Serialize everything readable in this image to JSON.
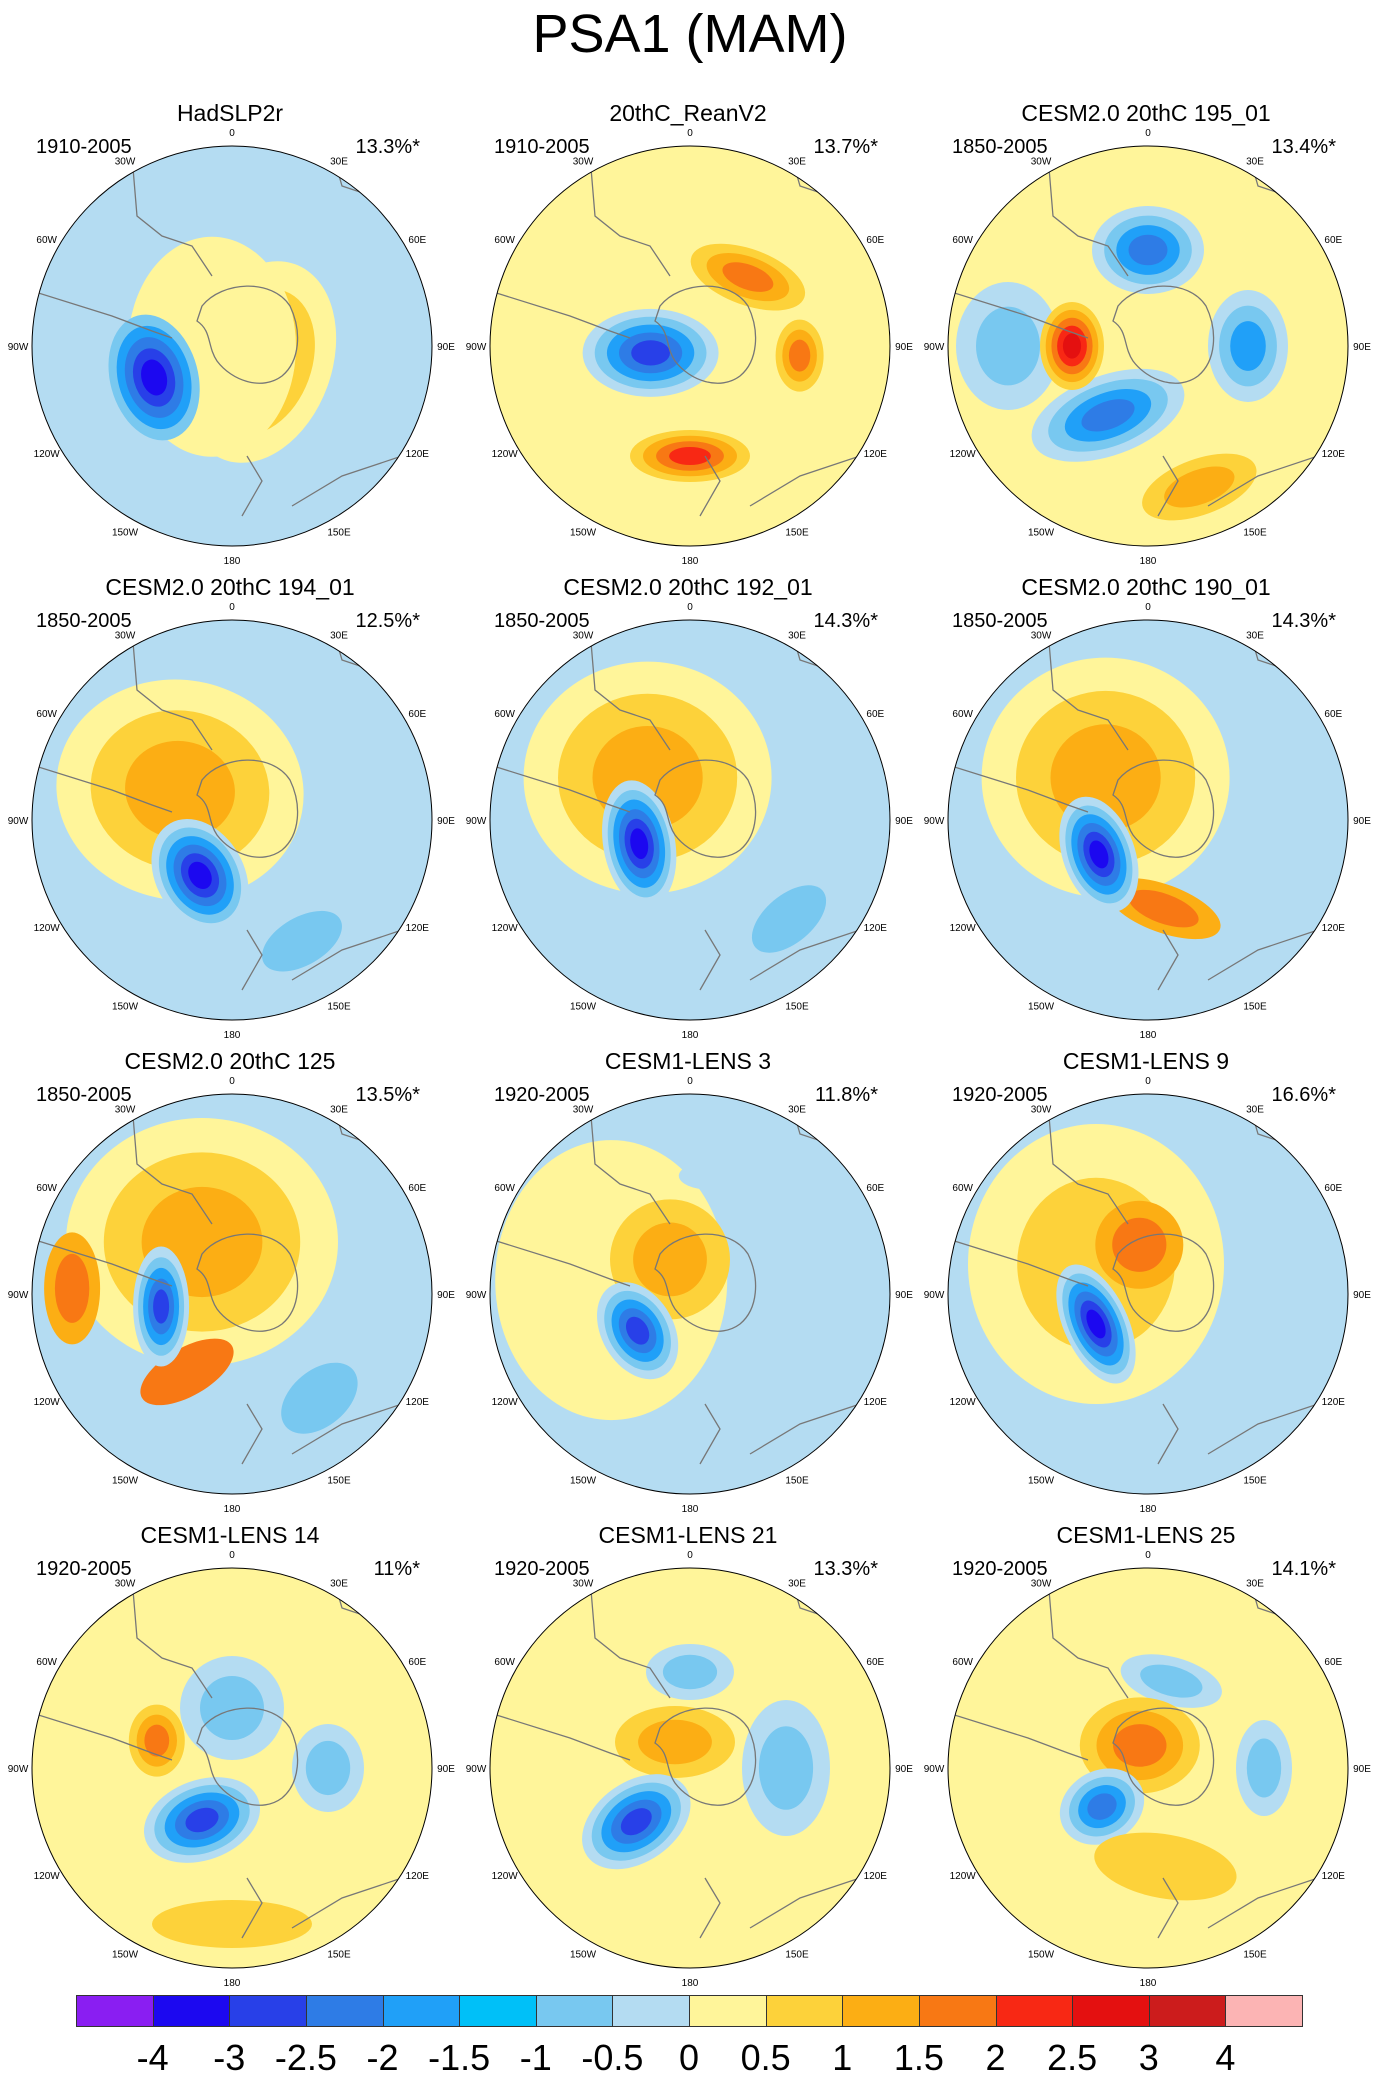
{
  "title": "PSA1 (MAM)",
  "longitude_labels": [
    "0",
    "30E",
    "60E",
    "90E",
    "120E",
    "150E",
    "180",
    "150W",
    "120W",
    "90W",
    "60W",
    "30W"
  ],
  "panels": [
    {
      "title": "HadSLP2r",
      "period": "1910-2005",
      "percent": "13.3%*",
      "background": "#b4dcf2",
      "blobs": [
        {
          "dir": 120,
          "r": 0.16,
          "rx": 0.36,
          "ry": 0.52,
          "rot": 20,
          "levels": [
            "#fff59a",
            "#fdd23a",
            "#fcae14"
          ]
        },
        {
          "dir": -92,
          "r": 0.1,
          "rx": 0.42,
          "ry": 0.55,
          "rot": 0,
          "levels": [
            "#fff59a"
          ]
        },
        {
          "dir": -112,
          "r": 0.42,
          "rx": 0.22,
          "ry": 0.32,
          "rot": -15,
          "levels": [
            "#78c8f0",
            "#20a0f8",
            "#2e7ce6",
            "#2840e8",
            "#1c08f0"
          ]
        }
      ]
    },
    {
      "title": "20thC_ReanV2",
      "period": "1910-2005",
      "percent": "13.7%*",
      "background": "#fff59a",
      "blobs": [
        {
          "dir": 40,
          "r": 0.45,
          "rx": 0.3,
          "ry": 0.14,
          "rot": 20,
          "levels": [
            "#fdd23a",
            "#fcae14",
            "#f87814"
          ]
        },
        {
          "dir": 180,
          "r": 0.55,
          "rx": 0.3,
          "ry": 0.13,
          "rot": 0,
          "levels": [
            "#fdd23a",
            "#fcae14",
            "#f87814",
            "#f82814"
          ]
        },
        {
          "dir": 95,
          "r": 0.55,
          "rx": 0.12,
          "ry": 0.18,
          "rot": 0,
          "levels": [
            "#fdd23a",
            "#fcae14",
            "#f87814"
          ]
        },
        {
          "dir": -100,
          "r": 0.2,
          "rx": 0.34,
          "ry": 0.22,
          "rot": 0,
          "levels": [
            "#b4dcf2",
            "#78c8f0",
            "#20a0f8",
            "#2e7ce6",
            "#2840e8"
          ]
        }
      ]
    },
    {
      "title": "CESM2.0 20thC 195_01",
      "period": "1850-2005",
      "percent": "13.4%*",
      "background": "#fff59a",
      "blobs": [
        {
          "dir": 0,
          "r": 0.48,
          "rx": 0.28,
          "ry": 0.22,
          "rot": 0,
          "levels": [
            "#b4dcf2",
            "#78c8f0",
            "#20a0f8",
            "#2e7ce6"
          ]
        },
        {
          "dir": 90,
          "r": 0.5,
          "rx": 0.2,
          "ry": 0.28,
          "rot": 0,
          "levels": [
            "#b4dcf2",
            "#78c8f0",
            "#20a0f8"
          ]
        },
        {
          "dir": -150,
          "r": 0.4,
          "rx": 0.4,
          "ry": 0.2,
          "rot": -20,
          "levels": [
            "#b4dcf2",
            "#78c8f0",
            "#20a0f8",
            "#2e7ce6"
          ]
        },
        {
          "dir": -90,
          "r": 0.7,
          "rx": 0.26,
          "ry": 0.32,
          "rot": 0,
          "levels": [
            "#b4dcf2",
            "#78c8f0"
          ]
        },
        {
          "dir": -90,
          "r": 0.38,
          "rx": 0.16,
          "ry": 0.22,
          "rot": 0,
          "levels": [
            "#fdd23a",
            "#fcae14",
            "#f87814",
            "#f82814",
            "#e41010"
          ]
        },
        {
          "dir": 160,
          "r": 0.75,
          "rx": 0.3,
          "ry": 0.14,
          "rot": -20,
          "levels": [
            "#fdd23a",
            "#fcae14"
          ]
        }
      ]
    },
    {
      "title": "CESM2.0 20thC 194_01",
      "period": "1850-2005",
      "percent": "12.5%*",
      "background": "#b4dcf2",
      "blobs": [
        {
          "dir": -60,
          "r": 0.3,
          "rx": 0.62,
          "ry": 0.55,
          "rot": 10,
          "levels": [
            "#fff59a",
            "#fdd23a",
            "#fcae14"
          ]
        },
        {
          "dir": -150,
          "r": 0.32,
          "rx": 0.22,
          "ry": 0.3,
          "rot": -30,
          "levels": [
            "#b4dcf2",
            "#78c8f0",
            "#20a0f8",
            "#2e7ce6",
            "#2840e8",
            "#1c08f0"
          ]
        },
        {
          "dir": 150,
          "r": 0.7,
          "rx": 0.22,
          "ry": 0.12,
          "rot": -30,
          "levels": [
            "#78c8f0"
          ]
        }
      ]
    },
    {
      "title": "CESM2.0 20thC 192_01",
      "period": "1850-2005",
      "percent": "14.3%*",
      "background": "#b4dcf2",
      "blobs": [
        {
          "dir": -45,
          "r": 0.3,
          "rx": 0.62,
          "ry": 0.58,
          "rot": 0,
          "levels": [
            "#fff59a",
            "#fdd23a",
            "#fcae14"
          ]
        },
        {
          "dir": -115,
          "r": 0.28,
          "rx": 0.18,
          "ry": 0.32,
          "rot": -10,
          "levels": [
            "#b4dcf2",
            "#78c8f0",
            "#20a0f8",
            "#2e7ce6",
            "#2840e8",
            "#1c08f0"
          ]
        },
        {
          "dir": 135,
          "r": 0.7,
          "rx": 0.22,
          "ry": 0.12,
          "rot": -40,
          "levels": [
            "#78c8f0"
          ]
        }
      ]
    },
    {
      "title": "CESM2.0 20thC 190_01",
      "period": "1850-2005",
      "percent": "14.3%*",
      "background": "#b4dcf2",
      "blobs": [
        {
          "dir": -45,
          "r": 0.3,
          "rx": 0.62,
          "ry": 0.6,
          "rot": 0,
          "levels": [
            "#fff59a",
            "#fdd23a",
            "#fcae14"
          ]
        },
        {
          "dir": 170,
          "r": 0.45,
          "rx": 0.3,
          "ry": 0.12,
          "rot": 20,
          "levels": [
            "#fcae14",
            "#f87814"
          ]
        },
        {
          "dir": -125,
          "r": 0.3,
          "rx": 0.18,
          "ry": 0.3,
          "rot": -20,
          "levels": [
            "#b4dcf2",
            "#78c8f0",
            "#20a0f8",
            "#2e7ce6",
            "#2840e8",
            "#1c08f0"
          ]
        }
      ]
    },
    {
      "title": "CESM2.0 20thC 125",
      "period": "1850-2005",
      "percent": "13.5%*",
      "background": "#b4dcf2",
      "blobs": [
        {
          "dir": -30,
          "r": 0.3,
          "rx": 0.68,
          "ry": 0.62,
          "rot": 0,
          "levels": [
            "#fff59a",
            "#fdd23a",
            "#fcae14"
          ]
        },
        {
          "dir": -88,
          "r": 0.8,
          "rx": 0.14,
          "ry": 0.28,
          "rot": 0,
          "levels": [
            "#fcae14",
            "#f87814"
          ]
        },
        {
          "dir": -150,
          "r": 0.45,
          "rx": 0.26,
          "ry": 0.12,
          "rot": -30,
          "levels": [
            "#f87814"
          ]
        },
        {
          "dir": -100,
          "r": 0.36,
          "rx": 0.14,
          "ry": 0.3,
          "rot": 0,
          "levels": [
            "#b4dcf2",
            "#78c8f0",
            "#20a0f8",
            "#2e7ce6",
            "#2840e8"
          ]
        },
        {
          "dir": 140,
          "r": 0.68,
          "rx": 0.22,
          "ry": 0.14,
          "rot": -40,
          "levels": [
            "#78c8f0"
          ]
        }
      ]
    },
    {
      "title": "CESM1-LENS 3",
      "period": "1920-2005",
      "percent": "11.8%*",
      "background": "#b4dcf2",
      "blobs": [
        {
          "dir": -80,
          "r": 0.4,
          "rx": 0.58,
          "ry": 0.7,
          "rot": 0,
          "levels": [
            "#fff59a"
          ]
        },
        {
          "dir": -30,
          "r": 0.2,
          "rx": 0.3,
          "ry": 0.3,
          "rot": 0,
          "levels": [
            "#fdd23a",
            "#fcae14"
          ]
        },
        {
          "dir": -125,
          "r": 0.32,
          "rx": 0.18,
          "ry": 0.26,
          "rot": -30,
          "levels": [
            "#b4dcf2",
            "#78c8f0",
            "#20a0f8",
            "#2e7ce6",
            "#2840e8"
          ]
        },
        {
          "dir": 10,
          "r": 0.6,
          "rx": 0.16,
          "ry": 0.07,
          "rot": 0,
          "levels": [
            "#b4dcf2"
          ]
        }
      ]
    },
    {
      "title": "CESM1-LENS 9",
      "period": "1920-2005",
      "percent": "16.6%*",
      "background": "#b4dcf2",
      "blobs": [
        {
          "dir": -60,
          "r": 0.3,
          "rx": 0.64,
          "ry": 0.7,
          "rot": 0,
          "levels": [
            "#fff59a",
            "#fdd23a"
          ]
        },
        {
          "dir": -10,
          "r": 0.25,
          "rx": 0.22,
          "ry": 0.22,
          "rot": 0,
          "levels": [
            "#fcae14",
            "#f87814"
          ]
        },
        {
          "dir": -120,
          "r": 0.3,
          "rx": 0.16,
          "ry": 0.32,
          "rot": -25,
          "levels": [
            "#b4dcf2",
            "#78c8f0",
            "#20a0f8",
            "#2e7ce6",
            "#2840e8",
            "#1c08f0"
          ]
        }
      ]
    },
    {
      "title": "CESM1-LENS 14",
      "period": "1920-2005",
      "percent": "11%*",
      "background": "#fff59a",
      "blobs": [
        {
          "dir": 0,
          "r": 0.3,
          "rx": 0.26,
          "ry": 0.26,
          "rot": 0,
          "levels": [
            "#b4dcf2",
            "#78c8f0"
          ]
        },
        {
          "dir": 90,
          "r": 0.48,
          "rx": 0.18,
          "ry": 0.22,
          "rot": 0,
          "levels": [
            "#b4dcf2",
            "#78c8f0"
          ]
        },
        {
          "dir": -70,
          "r": 0.4,
          "rx": 0.14,
          "ry": 0.18,
          "rot": 0,
          "levels": [
            "#fdd23a",
            "#fcae14",
            "#f87814"
          ]
        },
        {
          "dir": -150,
          "r": 0.3,
          "rx": 0.3,
          "ry": 0.2,
          "rot": -20,
          "levels": [
            "#b4dcf2",
            "#78c8f0",
            "#20a0f8",
            "#2e7ce6",
            "#2840e8"
          ]
        },
        {
          "dir": 180,
          "r": 0.78,
          "rx": 0.4,
          "ry": 0.12,
          "rot": 0,
          "levels": [
            "#fdd23a"
          ]
        }
      ]
    },
    {
      "title": "CESM1-LENS 21",
      "period": "1920-2005",
      "percent": "13.3%*",
      "background": "#fff59a",
      "blobs": [
        {
          "dir": 0,
          "r": 0.48,
          "rx": 0.22,
          "ry": 0.14,
          "rot": 0,
          "levels": [
            "#b4dcf2",
            "#78c8f0"
          ]
        },
        {
          "dir": 90,
          "r": 0.48,
          "rx": 0.22,
          "ry": 0.34,
          "rot": 0,
          "levels": [
            "#b4dcf2",
            "#78c8f0"
          ]
        },
        {
          "dir": -30,
          "r": 0.15,
          "rx": 0.3,
          "ry": 0.18,
          "rot": 0,
          "levels": [
            "#fdd23a",
            "#fcae14"
          ]
        },
        {
          "dir": -135,
          "r": 0.38,
          "rx": 0.3,
          "ry": 0.2,
          "rot": -35,
          "levels": [
            "#b4dcf2",
            "#78c8f0",
            "#20a0f8",
            "#2e7ce6",
            "#2840e8"
          ]
        }
      ]
    },
    {
      "title": "CESM1-LENS 25",
      "period": "1920-2005",
      "percent": "14.1%*",
      "background": "#fff59a",
      "blobs": [
        {
          "dir": 15,
          "r": 0.45,
          "rx": 0.26,
          "ry": 0.12,
          "rot": 15,
          "levels": [
            "#b4dcf2",
            "#78c8f0"
          ]
        },
        {
          "dir": 90,
          "r": 0.58,
          "rx": 0.14,
          "ry": 0.24,
          "rot": 0,
          "levels": [
            "#b4dcf2",
            "#78c8f0"
          ]
        },
        {
          "dir": -20,
          "r": 0.12,
          "rx": 0.3,
          "ry": 0.24,
          "rot": 0,
          "levels": [
            "#fdd23a",
            "#fcae14",
            "#f87814"
          ]
        },
        {
          "dir": -130,
          "r": 0.3,
          "rx": 0.22,
          "ry": 0.18,
          "rot": -30,
          "levels": [
            "#b4dcf2",
            "#78c8f0",
            "#20a0f8",
            "#2e7ce6"
          ]
        },
        {
          "dir": 170,
          "r": 0.5,
          "rx": 0.36,
          "ry": 0.16,
          "rot": 10,
          "levels": [
            "#fdd23a"
          ]
        }
      ]
    }
  ],
  "colorbar": {
    "colors": [
      "#8a1ef2",
      "#1c08f0",
      "#2840e8",
      "#2e7ce6",
      "#20a0f8",
      "#00c0f8",
      "#78c8f0",
      "#b4dcf2",
      "#fff59a",
      "#fdd23a",
      "#fcae14",
      "#f87814",
      "#f82814",
      "#e41010",
      "#cc1c1c",
      "#fcb4b4"
    ],
    "ticks": [
      "-4",
      "-3",
      "-2.5",
      "-2",
      "-1.5",
      "-1",
      "-0.5",
      "0",
      "0.5",
      "1",
      "1.5",
      "2",
      "2.5",
      "3",
      "4"
    ]
  }
}
